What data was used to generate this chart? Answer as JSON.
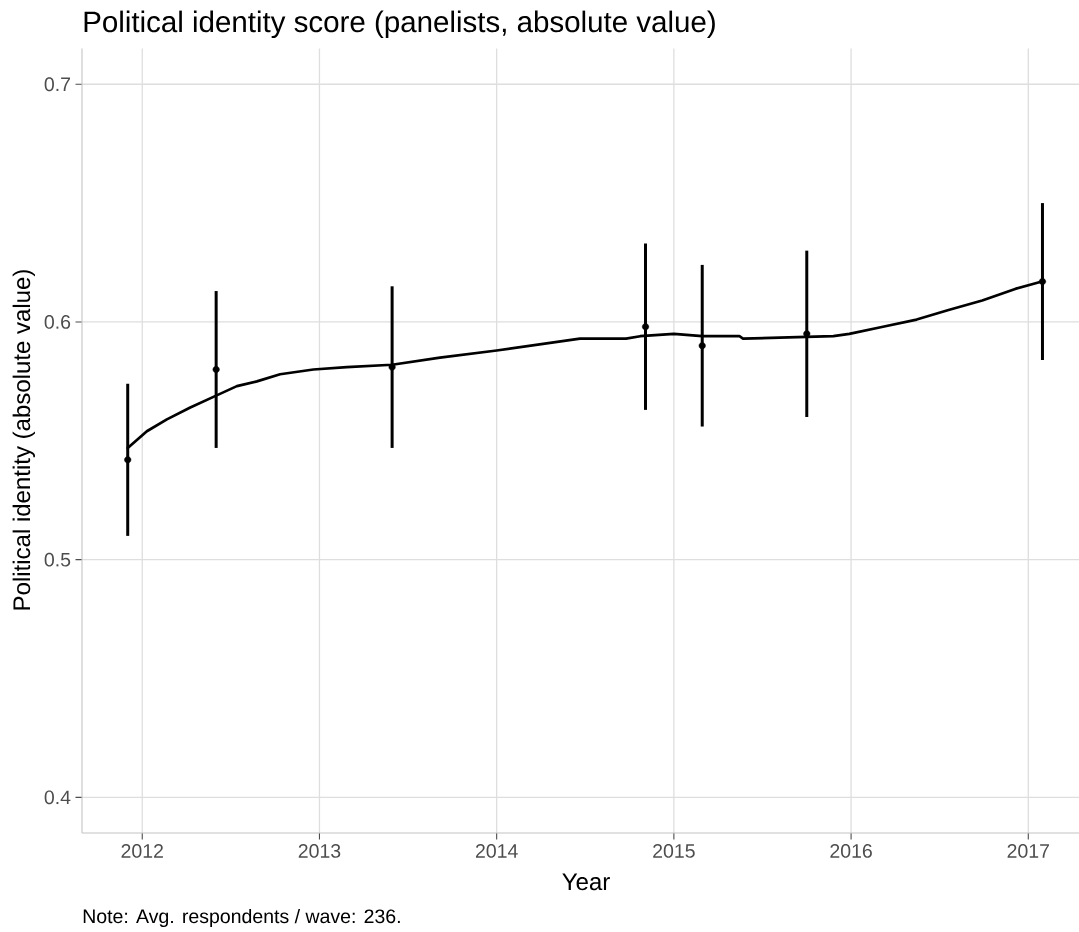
{
  "chart_data": {
    "type": "scatter",
    "title": "Political identity score (panelists, absolute value)",
    "xlabel": "Year",
    "ylabel": "Political identity (absolute value)",
    "annotations": [
      "Note: Avg. respondents / wave: 236."
    ],
    "xlim": [
      2011.66,
      2017.286
    ],
    "ylim": [
      0.385,
      0.715
    ],
    "xticks": [
      2012,
      2013,
      2014,
      2015,
      2016,
      2017
    ],
    "yticks": [
      0.4,
      0.5,
      0.6,
      0.7
    ],
    "grid": true,
    "series": [
      {
        "color": "#000000",
        "marker": "circle",
        "x": [
          2011.918,
          2012.417,
          2013.41,
          2014.84,
          2015.16,
          2015.75,
          2017.08
        ],
        "values": [
          0.542,
          0.58,
          0.581,
          0.598,
          0.59,
          0.595,
          0.617
        ],
        "errors": [
          0.032,
          0.033,
          0.034,
          0.035,
          0.034,
          0.035,
          0.033
        ]
      },
      {
        "type": "line",
        "color": "#000000",
        "marker": "none",
        "line_style": "solid",
        "x": [
          2011.918,
          2012.026,
          2012.139,
          2012.271,
          2012.417,
          2012.534,
          2012.647,
          2012.778,
          2012.966,
          2013.154,
          2013.41,
          2013.68,
          2014.0,
          2014.47,
          2014.73,
          2014.81,
          2015.0,
          2015.16,
          2015.37,
          2015.39,
          2015.9,
          2015.99,
          2016.18,
          2016.37,
          2016.55,
          2016.74,
          2016.93,
          2017.077
        ],
        "values": [
          0.547,
          0.554,
          0.559,
          0.564,
          0.569,
          0.573,
          0.575,
          0.578,
          0.58,
          0.581,
          0.582,
          0.585,
          0.588,
          0.593,
          0.593,
          0.594,
          0.595,
          0.594,
          0.594,
          0.593,
          0.594,
          0.595,
          0.598,
          0.601,
          0.605,
          0.609,
          0.614,
          0.617
        ]
      }
    ]
  }
}
